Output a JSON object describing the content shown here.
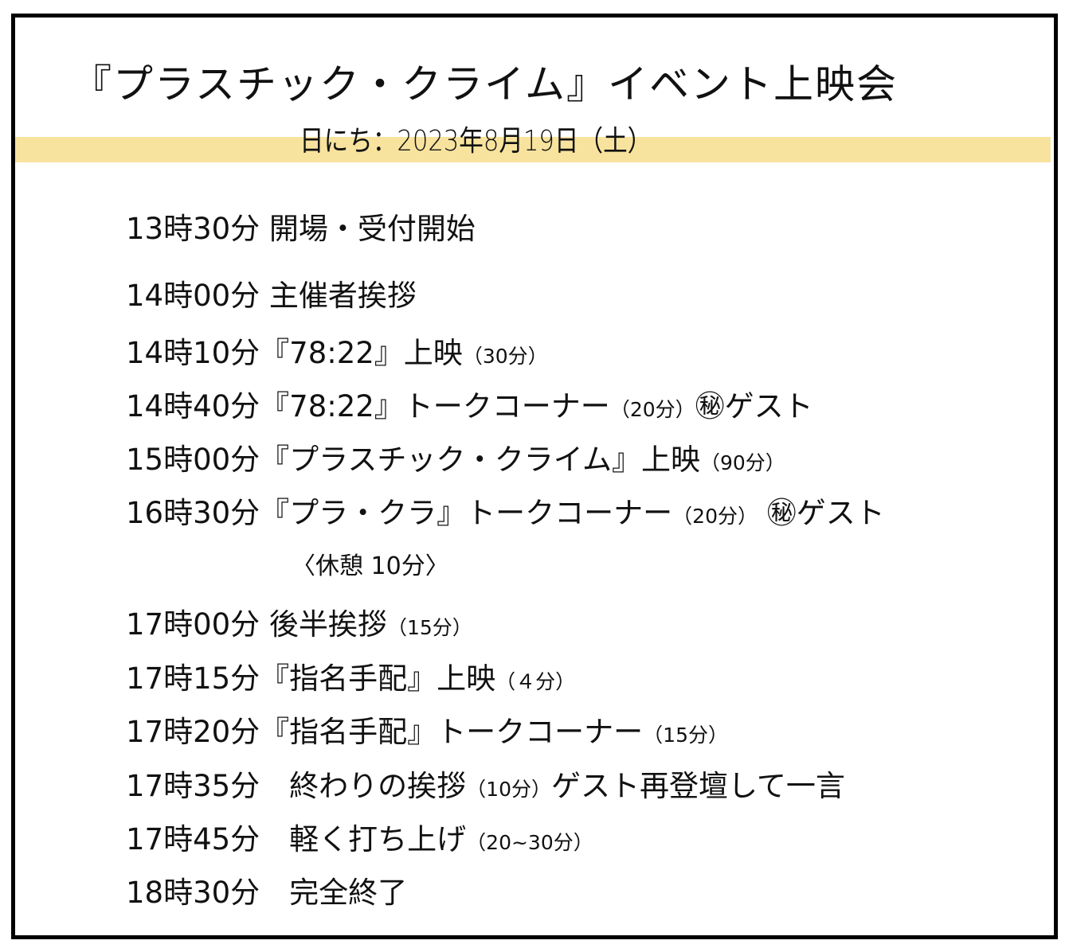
{
  "title": "『プラスチック・クライム』イベント上映会",
  "date": "日にち：2023年8月19日（土）",
  "colors": {
    "highlight": "#f8e39e",
    "border": "#000000"
  },
  "schedule": [
    {
      "time": "13時30分",
      "text": " 開場・受付開始",
      "note": "",
      "suffix": ""
    },
    {
      "time": "14時00分",
      "text": " 主催者挨拶",
      "note": "",
      "suffix": ""
    },
    {
      "time": "14時10分",
      "text": "『78:22』上映",
      "note": "（30分）",
      "suffix": ""
    },
    {
      "time": "14時40分",
      "text": "『78:22』トークコーナー",
      "note": "（20分）",
      "suffix": "㊙ゲスト"
    },
    {
      "time": "15時00分",
      "text": "『プラスチック・クライム』上映",
      "note": "（90分）",
      "suffix": ""
    },
    {
      "time": "16時30分",
      "text": "『プラ・クラ』トークコーナー",
      "note": "（20分）",
      "suffix": " ㊙ゲスト"
    },
    {
      "time": "",
      "text": "〈休憩 10分〉",
      "note": "",
      "suffix": ""
    },
    {
      "time": "17時00分",
      "text": " 後半挨拶",
      "note": "（15分）",
      "suffix": ""
    },
    {
      "time": "17時15分",
      "text": "『指名手配』上映",
      "note": "（４分）",
      "suffix": ""
    },
    {
      "time": "17時20分",
      "text": "『指名手配』トークコーナー",
      "note": "（15分）",
      "suffix": ""
    },
    {
      "time": "17時35分",
      "text": "　終わりの挨拶",
      "note": "（10分）",
      "suffix": "ゲスト再登壇して一言"
    },
    {
      "time": "17時45分",
      "text": "　軽く打ち上げ",
      "note": "（20~30分）",
      "suffix": ""
    },
    {
      "time": "18時30分",
      "text": "　完全終了",
      "note": "",
      "suffix": ""
    }
  ]
}
